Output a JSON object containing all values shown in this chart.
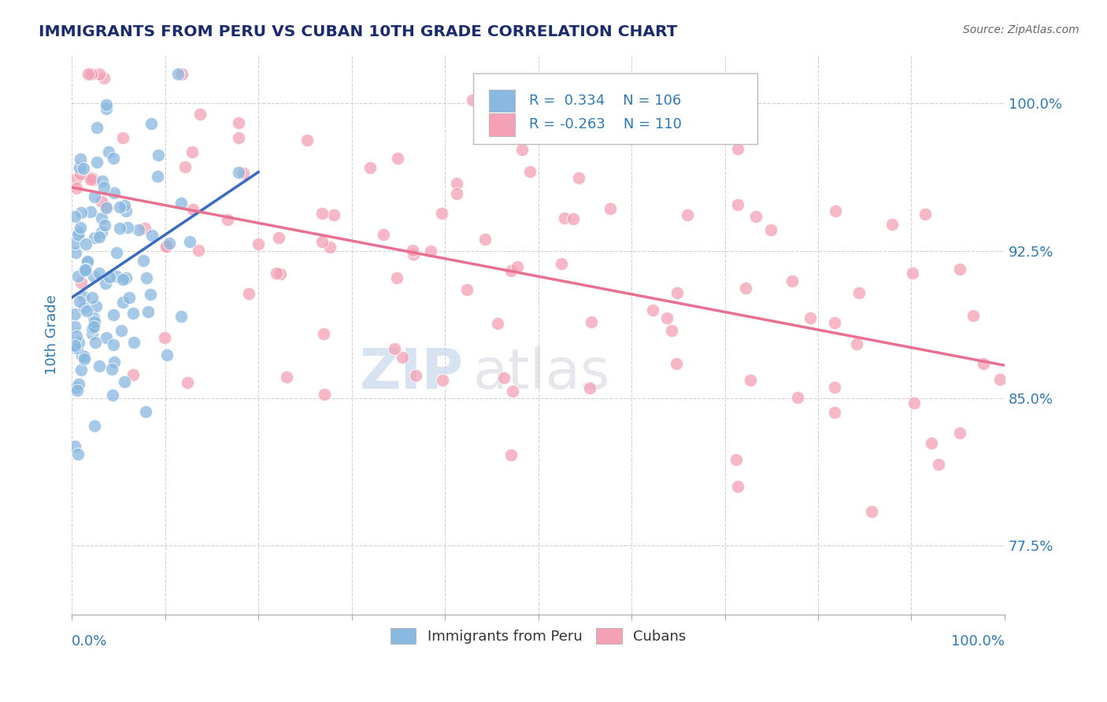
{
  "title": "IMMIGRANTS FROM PERU VS CUBAN 10TH GRADE CORRELATION CHART",
  "source": "Source: ZipAtlas.com",
  "ylabel": "10th Grade",
  "xmin": 0.0,
  "xmax": 100.0,
  "ymin": 74.0,
  "ymax": 102.5,
  "yticks": [
    77.5,
    85.0,
    92.5,
    100.0
  ],
  "color_peru": "#89b8e0",
  "color_cuba": "#f4a0b5",
  "color_peru_line": "#3a6bbf",
  "color_cuba_line": "#e87090",
  "color_title": "#1a2c6e",
  "color_axis_label": "#2c7bb6",
  "color_tick_label": "#2c7bb6",
  "color_source": "#666666",
  "background_color": "#ffffff",
  "grid_color": "#cccccc",
  "watermark_zip": "ZIP",
  "watermark_atlas": "atlas",
  "legend_box_color": "#ffffff",
  "legend_border_color": "#bbbbbb"
}
